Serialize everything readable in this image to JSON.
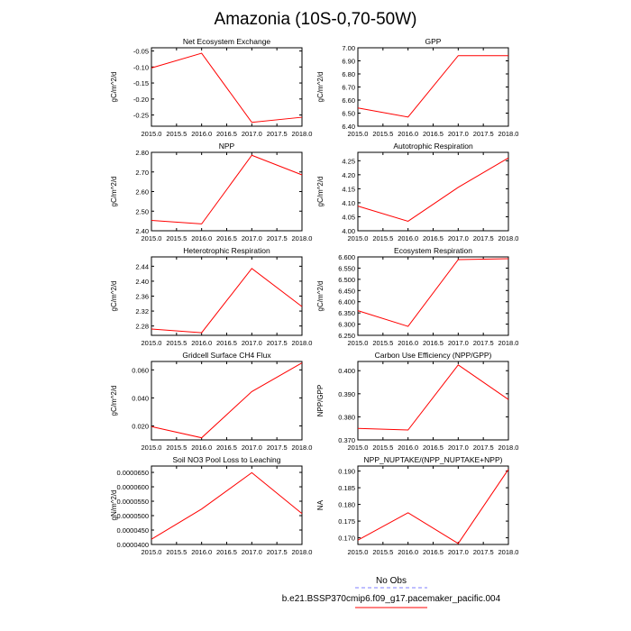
{
  "title": "Amazonia (10S-0,70-50W)",
  "legend": {
    "obs_label": "No Obs",
    "obs_color": "#7f7fff",
    "model_label": "b.e21.BSSP370cmip6.f09_g17.pacemaker_pacific.004",
    "model_color": "#ff0000"
  },
  "chart_data": [
    {
      "type": "line",
      "title": "Net Ecosystem Exchange",
      "xlabel": "",
      "ylabel": "gC/m^2/d",
      "x": [
        2015.0,
        2016.0,
        2017.0,
        2018.0
      ],
      "xticks": [
        "2015.0",
        "2015.5",
        "2016.0",
        "2016.5",
        "2017.0",
        "2017.5",
        "2018.0"
      ],
      "xlim": [
        2015.0,
        2018.0
      ],
      "ylim": [
        -0.285,
        -0.04
      ],
      "yticks": [
        -0.05,
        -0.1,
        -0.15,
        -0.2,
        -0.25
      ],
      "ytick_labels": [
        "-0.05",
        "-0.10",
        "-0.15",
        "-0.20",
        "-0.25"
      ],
      "series": [
        {
          "values": [
            -0.103,
            -0.057,
            -0.273,
            -0.257
          ],
          "color": "#ff0000"
        }
      ]
    },
    {
      "type": "line",
      "title": "GPP",
      "xlabel": "",
      "ylabel": "gC/m^2/d",
      "x": [
        2015.0,
        2016.0,
        2017.0,
        2018.0
      ],
      "xticks": [
        "2015.0",
        "2015.5",
        "2016.0",
        "2016.5",
        "2017.0",
        "2017.5",
        "2018.0"
      ],
      "xlim": [
        2015.0,
        2018.0
      ],
      "ylim": [
        6.4,
        7.0
      ],
      "yticks": [
        6.4,
        6.5,
        6.6,
        6.7,
        6.8,
        6.9,
        7.0
      ],
      "ytick_labels": [
        "6.40",
        "6.50",
        "6.60",
        "6.70",
        "6.80",
        "6.90",
        "7.00"
      ],
      "series": [
        {
          "values": [
            6.54,
            6.47,
            6.94,
            6.94
          ],
          "color": "#ff0000"
        }
      ]
    },
    {
      "type": "line",
      "title": "NPP",
      "xlabel": "",
      "ylabel": "gC/m^2/d",
      "x": [
        2015.0,
        2016.0,
        2017.0,
        2018.0
      ],
      "xticks": [
        "2015.0",
        "2015.5",
        "2016.0",
        "2016.5",
        "2017.0",
        "2017.5",
        "2018.0"
      ],
      "xlim": [
        2015.0,
        2018.0
      ],
      "ylim": [
        2.4,
        2.8
      ],
      "yticks": [
        2.4,
        2.5,
        2.6,
        2.7,
        2.8
      ],
      "ytick_labels": [
        "2.40",
        "2.50",
        "2.60",
        "2.70",
        "2.80"
      ],
      "series": [
        {
          "values": [
            2.453,
            2.435,
            2.785,
            2.685
          ],
          "color": "#ff0000"
        }
      ]
    },
    {
      "type": "line",
      "title": "Autotrophic Respiration",
      "xlabel": "",
      "ylabel": "gC/m^2/d",
      "x": [
        2015.0,
        2016.0,
        2017.0,
        2018.0
      ],
      "xticks": [
        "2015.0",
        "2015.5",
        "2016.0",
        "2016.5",
        "2017.0",
        "2017.5",
        "2018.0"
      ],
      "xlim": [
        2015.0,
        2018.0
      ],
      "ylim": [
        4.0,
        4.28
      ],
      "yticks": [
        4.0,
        4.05,
        4.1,
        4.15,
        4.2,
        4.25
      ],
      "ytick_labels": [
        "4.00",
        "4.05",
        "4.10",
        "4.15",
        "4.20",
        "4.25"
      ],
      "series": [
        {
          "values": [
            4.088,
            4.034,
            4.155,
            4.26
          ],
          "color": "#ff0000"
        }
      ]
    },
    {
      "type": "line",
      "title": "Heterotrophic Respiration",
      "xlabel": "",
      "ylabel": "gC/m^2/d",
      "x": [
        2015.0,
        2016.0,
        2017.0,
        2018.0
      ],
      "xticks": [
        "2015.0",
        "2015.5",
        "2016.0",
        "2016.5",
        "2017.0",
        "2017.5",
        "2018.0"
      ],
      "xlim": [
        2015.0,
        2018.0
      ],
      "ylim": [
        2.255,
        2.465
      ],
      "yticks": [
        2.28,
        2.32,
        2.36,
        2.4,
        2.44
      ],
      "ytick_labels": [
        "2.28",
        "2.32",
        "2.36",
        "2.40",
        "2.44"
      ],
      "series": [
        {
          "values": [
            2.272,
            2.262,
            2.434,
            2.332
          ],
          "color": "#ff0000"
        }
      ]
    },
    {
      "type": "line",
      "title": "Ecosystem Respiration",
      "xlabel": "",
      "ylabel": "gC/m^2/d",
      "x": [
        2015.0,
        2016.0,
        2017.0,
        2018.0
      ],
      "xticks": [
        "2015.0",
        "2015.5",
        "2016.0",
        "2016.5",
        "2017.0",
        "2017.5",
        "2018.0"
      ],
      "xlim": [
        2015.0,
        2018.0
      ],
      "ylim": [
        6.25,
        6.6
      ],
      "yticks": [
        6.25,
        6.3,
        6.35,
        6.4,
        6.45,
        6.5,
        6.55,
        6.6
      ],
      "ytick_labels": [
        "6.250",
        "6.300",
        "6.350",
        "6.400",
        "6.450",
        "6.500",
        "6.550",
        "6.600"
      ],
      "series": [
        {
          "values": [
            6.36,
            6.29,
            6.588,
            6.592
          ],
          "color": "#ff0000"
        }
      ]
    },
    {
      "type": "line",
      "title": "Gridcell Surface CH4 Flux",
      "xlabel": "",
      "ylabel": "gC/m^2/d",
      "x": [
        2015.0,
        2016.0,
        2017.0,
        2018.0
      ],
      "xticks": [
        "2015.0",
        "2015.5",
        "2016.0",
        "2016.5",
        "2017.0",
        "2017.5",
        "2018.0"
      ],
      "xlim": [
        2015.0,
        2018.0
      ],
      "ylim": [
        0.01,
        0.066
      ],
      "yticks": [
        0.02,
        0.04,
        0.06
      ],
      "ytick_labels": [
        "0.020",
        "0.040",
        "0.060"
      ],
      "series": [
        {
          "values": [
            0.0195,
            0.0115,
            0.0445,
            0.065
          ],
          "color": "#ff0000"
        }
      ]
    },
    {
      "type": "line",
      "title": "Carbon Use Efficiency (NPP/GPP)",
      "xlabel": "",
      "ylabel": "NPP/GPP",
      "x": [
        2015.0,
        2016.0,
        2017.0,
        2018.0
      ],
      "xticks": [
        "2015.0",
        "2015.5",
        "2016.0",
        "2016.5",
        "2017.0",
        "2017.5",
        "2018.0"
      ],
      "xlim": [
        2015.0,
        2018.0
      ],
      "ylim": [
        0.37,
        0.404
      ],
      "yticks": [
        0.37,
        0.38,
        0.39,
        0.4
      ],
      "ytick_labels": [
        "0.370",
        "0.380",
        "0.390",
        "0.400"
      ],
      "series": [
        {
          "values": [
            0.375,
            0.3743,
            0.4025,
            0.3875
          ],
          "color": "#ff0000"
        }
      ]
    },
    {
      "type": "line",
      "title": "Soil NO3 Pool Loss to Leaching",
      "xlabel": "",
      "ylabel": "gN/m^2/d",
      "x": [
        2015.0,
        2016.0,
        2017.0,
        2018.0
      ],
      "xticks": [
        "2015.0",
        "2015.5",
        "2016.0",
        "2016.5",
        "2017.0",
        "2017.5",
        "2018.0"
      ],
      "xlim": [
        2015.0,
        2018.0
      ],
      "ylim": [
        4e-05,
        6.72e-05
      ],
      "yticks": [
        4e-05,
        4.5e-05,
        5e-05,
        5.5e-05,
        6e-05,
        6.5e-05
      ],
      "ytick_labels": [
        "0.0000400",
        "0.0000450",
        "0.0000500",
        "0.0000550",
        "0.0000600",
        "0.0000650"
      ],
      "series": [
        {
          "values": [
            4.18e-05,
            5.23e-05,
            6.49e-05,
            5.07e-05
          ],
          "color": "#ff0000"
        }
      ]
    },
    {
      "type": "line",
      "title": "NPP_NUPTAKE/(NPP_NUPTAKE+NPP)",
      "xlabel": "",
      "ylabel": "NA",
      "x": [
        2015.0,
        2016.0,
        2017.0,
        2018.0
      ],
      "xticks": [
        "2015.0",
        "2015.5",
        "2016.0",
        "2016.5",
        "2017.0",
        "2017.5",
        "2018.0"
      ],
      "xlim": [
        2015.0,
        2018.0
      ],
      "ylim": [
        0.168,
        0.1915
      ],
      "yticks": [
        0.17,
        0.175,
        0.18,
        0.185,
        0.19
      ],
      "ytick_labels": [
        "0.170",
        "0.175",
        "0.180",
        "0.185",
        "0.190"
      ],
      "series": [
        {
          "values": [
            0.1693,
            0.1775,
            0.1683,
            0.1905
          ],
          "color": "#ff0000"
        }
      ]
    }
  ]
}
